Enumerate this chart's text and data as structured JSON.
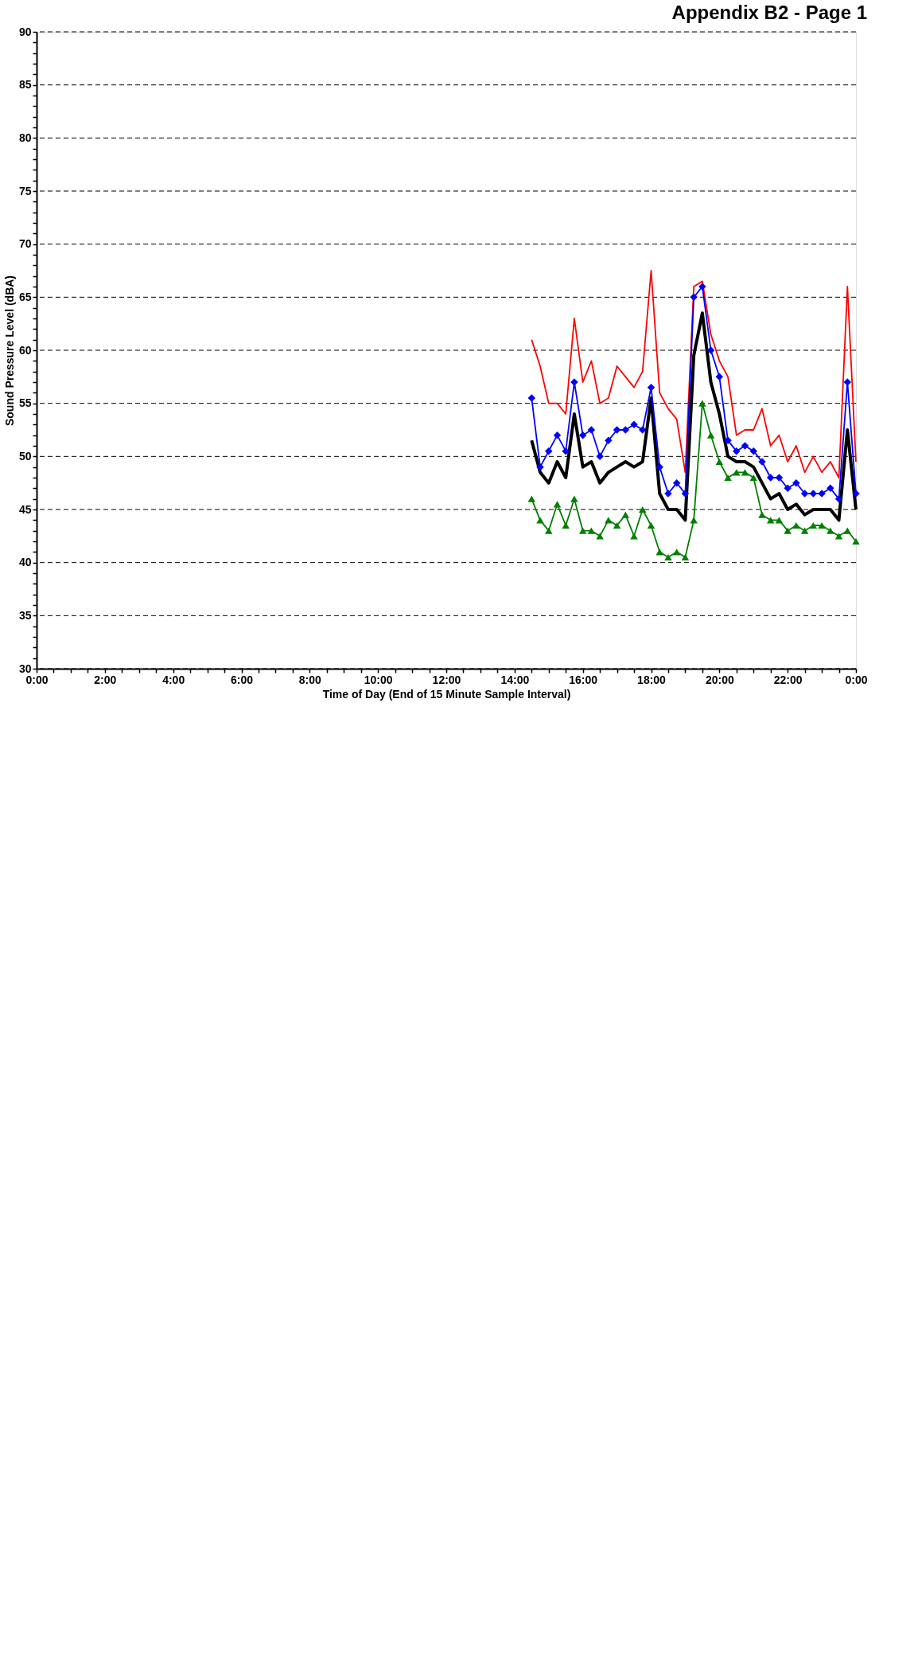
{
  "chart_data": {
    "type": "line",
    "title": "Appendix B2 - Page 1",
    "xlabel": "Time of Day (End of 15 Minute Sample Interval)",
    "ylabel": "Sound Pressure Level (dBA)",
    "x": [
      14.5,
      14.75,
      15,
      15.25,
      15.5,
      15.75,
      16,
      16.25,
      16.5,
      16.75,
      17,
      17.25,
      17.5,
      17.75,
      18,
      18.25,
      18.5,
      18.75,
      19,
      19.25,
      19.5,
      19.75,
      20,
      20.25,
      20.5,
      20.75,
      21,
      21.25,
      21.5,
      21.75,
      22,
      22.25,
      22.5,
      22.75,
      23,
      23.25,
      23.5,
      23.75,
      24
    ],
    "series": [
      {
        "color": "#000000",
        "marker": "none",
        "values": [
          51.5,
          48.5,
          47.5,
          49.5,
          48.0,
          54.0,
          49.0,
          49.5,
          47.5,
          48.5,
          49.0,
          49.5,
          49.0,
          49.5,
          55.5,
          46.5,
          45.0,
          45.0,
          44.0,
          59.5,
          63.5,
          57.0,
          54.0,
          50.0,
          49.5,
          49.5,
          49.0,
          47.5,
          46.0,
          46.5,
          45.0,
          45.5,
          44.5,
          45.0,
          45.0,
          45.0,
          44.0,
          52.5,
          45.0
        ]
      },
      {
        "color": "#ff0000",
        "marker": "none",
        "values": [
          61.0,
          58.5,
          55.0,
          55.0,
          54.0,
          63.0,
          57.0,
          59.0,
          55.0,
          55.5,
          58.5,
          57.5,
          56.5,
          58.0,
          67.5,
          56.0,
          54.5,
          53.5,
          48.5,
          66.0,
          66.5,
          61.5,
          59.0,
          57.5,
          52.0,
          52.5,
          52.5,
          54.5,
          51.0,
          52.0,
          49.5,
          51.0,
          48.5,
          50.0,
          48.5,
          49.5,
          48.0,
          66.0,
          49.5
        ]
      },
      {
        "color": "#0000ff",
        "marker": "diamond",
        "values": [
          55.5,
          49.0,
          50.5,
          52.0,
          50.5,
          57.0,
          52.0,
          52.5,
          50.0,
          51.5,
          52.5,
          52.5,
          53.0,
          52.5,
          56.5,
          49.0,
          46.5,
          47.5,
          46.5,
          65.0,
          66.0,
          60.0,
          57.5,
          51.5,
          50.5,
          51.0,
          50.5,
          49.5,
          48.0,
          48.0,
          47.0,
          47.5,
          46.5,
          46.5,
          46.5,
          47.0,
          46.0,
          57.0,
          46.5
        ]
      },
      {
        "color": "#008000",
        "marker": "triangle",
        "values": [
          46.0,
          44.0,
          43.0,
          45.5,
          43.5,
          46.0,
          43.0,
          43.0,
          42.5,
          44.0,
          43.5,
          44.5,
          42.5,
          45.0,
          43.5,
          41.0,
          40.5,
          41.0,
          40.5,
          44.0,
          55.0,
          52.0,
          49.5,
          48.0,
          48.5,
          48.5,
          48.0,
          44.5,
          44.0,
          44.0,
          43.0,
          43.5,
          43.0,
          43.5,
          43.5,
          43.0,
          42.5,
          43.0,
          42.0
        ]
      }
    ],
    "xlim": [
      0,
      24
    ],
    "xticks": [
      {
        "value": 0,
        "label": "0:00"
      },
      {
        "value": 0.5,
        "label": null
      },
      {
        "value": 1,
        "label": null
      },
      {
        "value": 1.5,
        "label": null
      },
      {
        "value": 2,
        "label": "2:00"
      },
      {
        "value": 2.5,
        "label": null
      },
      {
        "value": 3,
        "label": null
      },
      {
        "value": 3.5,
        "label": null
      },
      {
        "value": 4,
        "label": "4:00"
      },
      {
        "value": 4.5,
        "label": null
      },
      {
        "value": 5,
        "label": null
      },
      {
        "value": 5.5,
        "label": null
      },
      {
        "value": 6,
        "label": "6:00"
      },
      {
        "value": 6.5,
        "label": null
      },
      {
        "value": 7,
        "label": null
      },
      {
        "value": 7.5,
        "label": null
      },
      {
        "value": 8,
        "label": "8:00"
      },
      {
        "value": 8.5,
        "label": null
      },
      {
        "value": 9,
        "label": null
      },
      {
        "value": 9.5,
        "label": null
      },
      {
        "value": 10,
        "label": "10:00"
      },
      {
        "value": 10.5,
        "label": null
      },
      {
        "value": 11,
        "label": null
      },
      {
        "value": 11.5,
        "label": null
      },
      {
        "value": 12,
        "label": "12:00"
      },
      {
        "value": 12.5,
        "label": null
      },
      {
        "value": 13,
        "label": null
      },
      {
        "value": 13.5,
        "label": null
      },
      {
        "value": 14,
        "label": "14:00"
      },
      {
        "value": 14.5,
        "label": null
      },
      {
        "value": 15,
        "label": null
      },
      {
        "value": 15.5,
        "label": null
      },
      {
        "value": 16,
        "label": "16:00"
      },
      {
        "value": 16.5,
        "label": null
      },
      {
        "value": 17,
        "label": null
      },
      {
        "value": 17.5,
        "label": null
      },
      {
        "value": 18,
        "label": "18:00"
      },
      {
        "value": 18.5,
        "label": null
      },
      {
        "value": 19,
        "label": null
      },
      {
        "value": 19.5,
        "label": null
      },
      {
        "value": 20,
        "label": "20:00"
      },
      {
        "value": 20.5,
        "label": null
      },
      {
        "value": 21,
        "label": null
      },
      {
        "value": 21.5,
        "label": null
      },
      {
        "value": 22,
        "label": "22:00"
      },
      {
        "value": 22.5,
        "label": null
      },
      {
        "value": 23,
        "label": null
      },
      {
        "value": 23.5,
        "label": null
      },
      {
        "value": 24,
        "label": "0:00"
      }
    ],
    "ylim": [
      30,
      90
    ],
    "yticks": [
      30,
      {
        "value": 31,
        "label": null
      },
      {
        "value": 32,
        "label": null
      },
      {
        "value": 33,
        "label": null
      },
      {
        "value": 34,
        "label": null
      },
      35,
      {
        "value": 36,
        "label": null
      },
      {
        "value": 37,
        "label": null
      },
      {
        "value": 38,
        "label": null
      },
      {
        "value": 39,
        "label": null
      },
      40,
      {
        "value": 41,
        "label": null
      },
      {
        "value": 42,
        "label": null
      },
      {
        "value": 43,
        "label": null
      },
      {
        "value": 44,
        "label": null
      },
      45,
      {
        "value": 46,
        "label": null
      },
      {
        "value": 47,
        "label": null
      },
      {
        "value": 48,
        "label": null
      },
      {
        "value": 49,
        "label": null
      },
      50,
      {
        "value": 51,
        "label": null
      },
      {
        "value": 52,
        "label": null
      },
      {
        "value": 53,
        "label": null
      },
      {
        "value": 54,
        "label": null
      },
      55,
      {
        "value": 56,
        "label": null
      },
      {
        "value": 57,
        "label": null
      },
      {
        "value": 58,
        "label": null
      },
      {
        "value": 59,
        "label": null
      },
      60,
      {
        "value": 61,
        "label": null
      },
      {
        "value": 62,
        "label": null
      },
      {
        "value": 63,
        "label": null
      },
      {
        "value": 64,
        "label": null
      },
      65,
      {
        "value": 66,
        "label": null
      },
      {
        "value": 67,
        "label": null
      },
      {
        "value": 68,
        "label": null
      },
      {
        "value": 69,
        "label": null
      },
      70,
      {
        "value": 71,
        "label": null
      },
      {
        "value": 72,
        "label": null
      },
      {
        "value": 73,
        "label": null
      },
      {
        "value": 74,
        "label": null
      },
      75,
      {
        "value": 76,
        "label": null
      },
      {
        "value": 77,
        "label": null
      },
      {
        "value": 78,
        "label": null
      },
      {
        "value": 79,
        "label": null
      },
      80,
      {
        "value": 81,
        "label": null
      },
      {
        "value": 82,
        "label": null
      },
      {
        "value": 83,
        "label": null
      },
      {
        "value": 84,
        "label": null
      },
      85,
      {
        "value": 86,
        "label": null
      },
      {
        "value": 87,
        "label": null
      },
      {
        "value": 88,
        "label": null
      },
      {
        "value": 89,
        "label": null
      },
      90
    ],
    "grid": "y"
  }
}
